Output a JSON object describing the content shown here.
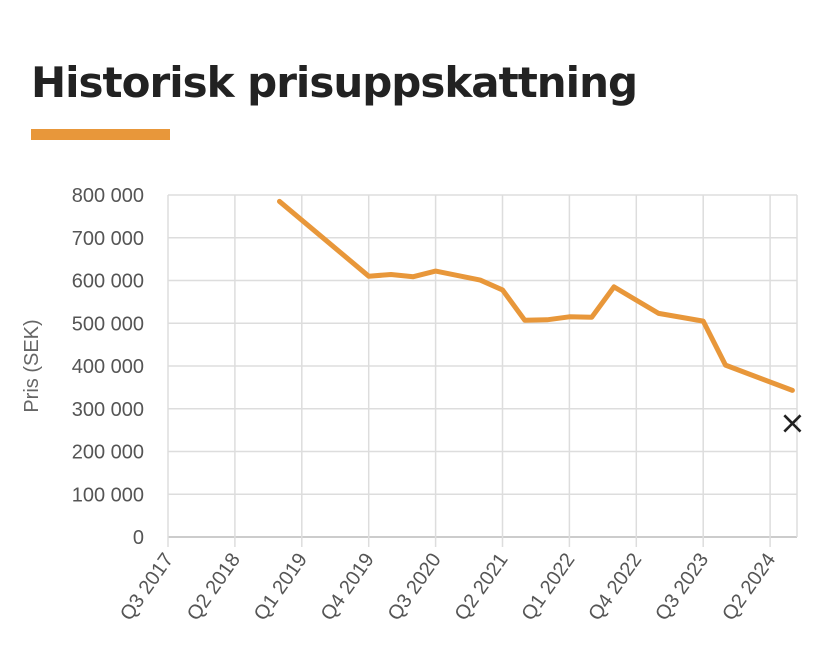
{
  "header": {
    "title": "Historisk prisuppskattning"
  },
  "colors": {
    "accent": "#E8973A",
    "grid": "#DDDDDD",
    "axis": "#BBBBBB"
  },
  "chart_data": {
    "type": "line",
    "ylabel": "Pris (SEK)",
    "xlabel": "",
    "ylim": [
      0,
      800000
    ],
    "yticks": [
      0,
      100000,
      200000,
      300000,
      400000,
      500000,
      600000,
      700000,
      800000
    ],
    "ytick_labels": [
      "0",
      "100 000",
      "200 000",
      "300 000",
      "400 000",
      "500 000",
      "600 000",
      "700 000",
      "800 000"
    ],
    "categories": [
      "Q3 2017",
      "Q2 2018",
      "Q1 2019",
      "Q4 2019",
      "Q3 2020",
      "Q2 2021",
      "Q1 2022",
      "Q4 2022",
      "Q3 2023",
      "Q2 2024"
    ],
    "grid": true,
    "series": [
      {
        "x": [
          "Q4 2018",
          "Q4 2019",
          "Q1 2020",
          "Q2 2020",
          "Q3 2020",
          "Q1 2021",
          "Q2 2021",
          "Q3 2021",
          "Q4 2021",
          "Q1 2022",
          "Q2 2022",
          "Q3 2022",
          "Q1 2023",
          "Q3 2023",
          "Q4 2023",
          "Q3 2024"
        ],
        "values": [
          785000,
          610000,
          614000,
          609000,
          622000,
          601000,
          578000,
          507000,
          508000,
          515000,
          514000,
          585000,
          523000,
          505000,
          402000,
          343000
        ]
      }
    ],
    "annotations": [
      {
        "x": "Q3 2024",
        "y": 270000,
        "symbol": "×"
      }
    ]
  }
}
